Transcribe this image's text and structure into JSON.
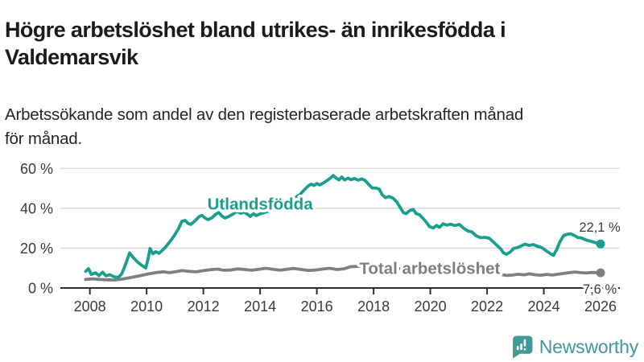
{
  "header": {
    "title": "Högre arbetslöshet bland utrikes- än inrikesfödda i\nValdemarsvik",
    "subtitle": "Arbetssökande som andel av den registerbaserade arbetskraften månad\nför månad."
  },
  "footer": {
    "brand": "Newsworthy",
    "logo_icon": "bar-chart-speech-bubble-icon"
  },
  "colors": {
    "teal_line": "#19A08D",
    "gray_line": "#7F7F7F",
    "logo_teal": "#3F9A95",
    "grid": "#D8D8D8",
    "axis": "#2E2E2E",
    "axis_text": "#3A3A3A",
    "title_text": "#1B1B1B"
  },
  "chart_data": {
    "type": "line",
    "title": "Högre arbetslöshet bland utrikes- än inrikesfödda i Valdemarsvik",
    "subtitle": "Arbetssökande som andel av den registerbaserade arbetskraften månad för månad.",
    "xlabel": "",
    "ylabel": "",
    "grid": "horizontal",
    "x_axis": {
      "range": [
        2006.96,
        2026.68
      ],
      "ticks": [
        2008,
        2010,
        2012,
        2014,
        2016,
        2018,
        2020,
        2022,
        2024,
        2026
      ]
    },
    "y_axis": {
      "range": [
        0,
        69.4
      ],
      "ticks": [
        0,
        20,
        40,
        60
      ],
      "tick_suffix": " %"
    },
    "series": [
      {
        "name": "Utlandsfödda",
        "color": "#19A08D",
        "end_value": 22.1,
        "end_label": "22,1 %",
        "end_label_dy": -15,
        "label_pos": {
          "year": 2014.0,
          "value": 39.3
        },
        "points": [
          [
            2007.85,
            8.3
          ],
          [
            2007.95,
            9.7
          ],
          [
            2008.05,
            6.8
          ],
          [
            2008.2,
            7.6
          ],
          [
            2008.32,
            6.2
          ],
          [
            2008.45,
            7.9
          ],
          [
            2008.57,
            6.1
          ],
          [
            2008.7,
            6.7
          ],
          [
            2008.85,
            5.6
          ],
          [
            2009.0,
            5.3
          ],
          [
            2009.12,
            7.0
          ],
          [
            2009.25,
            11.5
          ],
          [
            2009.4,
            17.6
          ],
          [
            2009.52,
            15.4
          ],
          [
            2009.67,
            13.2
          ],
          [
            2009.82,
            11.4
          ],
          [
            2009.97,
            10.0
          ],
          [
            2010.05,
            14.6
          ],
          [
            2010.12,
            19.8
          ],
          [
            2010.22,
            17.2
          ],
          [
            2010.32,
            18.2
          ],
          [
            2010.44,
            17.4
          ],
          [
            2010.56,
            19.0
          ],
          [
            2010.67,
            20.6
          ],
          [
            2010.82,
            23.2
          ],
          [
            2010.97,
            26.2
          ],
          [
            2011.12,
            29.6
          ],
          [
            2011.24,
            33.4
          ],
          [
            2011.36,
            33.9
          ],
          [
            2011.46,
            32.4
          ],
          [
            2011.56,
            31.9
          ],
          [
            2011.7,
            33.6
          ],
          [
            2011.85,
            35.8
          ],
          [
            2011.95,
            36.4
          ],
          [
            2012.06,
            35.1
          ],
          [
            2012.16,
            34.3
          ],
          [
            2012.3,
            35.2
          ],
          [
            2012.44,
            37.0
          ],
          [
            2012.54,
            37.9
          ],
          [
            2012.65,
            36.1
          ],
          [
            2012.76,
            35.1
          ],
          [
            2012.9,
            35.9
          ],
          [
            2013.05,
            37.1
          ],
          [
            2013.18,
            38.4
          ],
          [
            2013.32,
            37.5
          ],
          [
            2013.44,
            38.0
          ],
          [
            2013.55,
            37.0
          ],
          [
            2013.65,
            35.9
          ],
          [
            2013.77,
            37.3
          ],
          [
            2013.86,
            36.3
          ],
          [
            2014.0,
            37.2
          ],
          [
            2014.3,
            38.5
          ],
          [
            2014.6,
            40.1
          ],
          [
            2014.9,
            42.2
          ],
          [
            2015.15,
            44.5
          ],
          [
            2015.4,
            46.8
          ],
          [
            2015.58,
            49.6
          ],
          [
            2015.7,
            51.2
          ],
          [
            2015.8,
            52.1
          ],
          [
            2015.9,
            51.4
          ],
          [
            2016.0,
            52.4
          ],
          [
            2016.1,
            51.7
          ],
          [
            2016.22,
            52.6
          ],
          [
            2016.35,
            53.8
          ],
          [
            2016.48,
            55.2
          ],
          [
            2016.58,
            56.4
          ],
          [
            2016.68,
            55.1
          ],
          [
            2016.78,
            54.2
          ],
          [
            2016.88,
            55.7
          ],
          [
            2016.98,
            54.2
          ],
          [
            2017.1,
            55.1
          ],
          [
            2017.2,
            54.3
          ],
          [
            2017.32,
            54.9
          ],
          [
            2017.45,
            54.1
          ],
          [
            2017.58,
            54.7
          ],
          [
            2017.7,
            54.0
          ],
          [
            2017.82,
            52.1
          ],
          [
            2017.95,
            50.2
          ],
          [
            2018.08,
            50.1
          ],
          [
            2018.2,
            49.6
          ],
          [
            2018.3,
            46.8
          ],
          [
            2018.42,
            45.3
          ],
          [
            2018.55,
            45.9
          ],
          [
            2018.68,
            45.1
          ],
          [
            2018.82,
            43.1
          ],
          [
            2018.95,
            40.1
          ],
          [
            2019.05,
            37.8
          ],
          [
            2019.15,
            37.3
          ],
          [
            2019.28,
            38.9
          ],
          [
            2019.4,
            39.4
          ],
          [
            2019.5,
            37.3
          ],
          [
            2019.62,
            36.7
          ],
          [
            2019.75,
            34.8
          ],
          [
            2019.87,
            32.8
          ],
          [
            2019.97,
            30.8
          ],
          [
            2020.1,
            30.1
          ],
          [
            2020.22,
            31.4
          ],
          [
            2020.32,
            30.4
          ],
          [
            2020.45,
            32.2
          ],
          [
            2020.58,
            31.5
          ],
          [
            2020.72,
            32.0
          ],
          [
            2020.87,
            31.3
          ],
          [
            2021.02,
            31.9
          ],
          [
            2021.17,
            30.0
          ],
          [
            2021.32,
            28.6
          ],
          [
            2021.47,
            28.1
          ],
          [
            2021.62,
            26.1
          ],
          [
            2021.77,
            25.2
          ],
          [
            2021.92,
            25.4
          ],
          [
            2022.07,
            25.0
          ],
          [
            2022.22,
            23.1
          ],
          [
            2022.37,
            21.1
          ],
          [
            2022.48,
            19.6
          ],
          [
            2022.58,
            17.6
          ],
          [
            2022.68,
            16.9
          ],
          [
            2022.82,
            18.1
          ],
          [
            2022.94,
            19.9
          ],
          [
            2023.08,
            20.3
          ],
          [
            2023.2,
            21.1
          ],
          [
            2023.34,
            22.0
          ],
          [
            2023.48,
            21.3
          ],
          [
            2023.62,
            21.8
          ],
          [
            2023.78,
            20.9
          ],
          [
            2023.92,
            20.3
          ],
          [
            2024.08,
            18.7
          ],
          [
            2024.22,
            17.3
          ],
          [
            2024.34,
            16.4
          ],
          [
            2024.46,
            19.5
          ],
          [
            2024.56,
            23.0
          ],
          [
            2024.7,
            26.3
          ],
          [
            2024.82,
            26.9
          ],
          [
            2024.95,
            27.2
          ],
          [
            2025.08,
            26.3
          ],
          [
            2025.2,
            25.3
          ],
          [
            2025.32,
            25.1
          ],
          [
            2025.45,
            24.3
          ],
          [
            2025.58,
            23.7
          ],
          [
            2025.72,
            23.2
          ],
          [
            2025.85,
            22.6
          ],
          [
            2026.0,
            22.1
          ]
        ]
      },
      {
        "name": "Total arbetslöshet",
        "color": "#7F7F7F",
        "end_value": 7.6,
        "end_label": "7,6 %",
        "end_label_dy": 26,
        "label_pos": {
          "year": 2019.98,
          "value": 7.0
        },
        "points": [
          [
            2007.85,
            4.3
          ],
          [
            2008.1,
            4.6
          ],
          [
            2008.35,
            4.3
          ],
          [
            2008.6,
            4.1
          ],
          [
            2008.85,
            4.0
          ],
          [
            2009.1,
            4.4
          ],
          [
            2009.35,
            5.0
          ],
          [
            2009.6,
            5.7
          ],
          [
            2009.85,
            6.4
          ],
          [
            2010.1,
            7.2
          ],
          [
            2010.35,
            7.8
          ],
          [
            2010.6,
            8.1
          ],
          [
            2010.8,
            7.7
          ],
          [
            2011.0,
            8.1
          ],
          [
            2011.25,
            8.7
          ],
          [
            2011.5,
            8.3
          ],
          [
            2011.75,
            8.1
          ],
          [
            2012.0,
            8.7
          ],
          [
            2012.25,
            9.2
          ],
          [
            2012.5,
            9.5
          ],
          [
            2012.7,
            8.9
          ],
          [
            2012.95,
            9.0
          ],
          [
            2013.2,
            9.6
          ],
          [
            2013.45,
            9.3
          ],
          [
            2013.7,
            8.9
          ],
          [
            2013.95,
            9.4
          ],
          [
            2014.2,
            9.9
          ],
          [
            2014.45,
            9.4
          ],
          [
            2014.7,
            8.9
          ],
          [
            2014.95,
            9.4
          ],
          [
            2015.2,
            9.8
          ],
          [
            2015.45,
            9.3
          ],
          [
            2015.7,
            8.8
          ],
          [
            2015.95,
            9.0
          ],
          [
            2016.2,
            9.5
          ],
          [
            2016.45,
            9.9
          ],
          [
            2016.7,
            9.3
          ],
          [
            2016.95,
            9.6
          ],
          [
            2017.2,
            10.7
          ],
          [
            2017.5,
            10.9
          ],
          [
            2018.0,
            10.3
          ],
          [
            2018.5,
            10.0
          ],
          [
            2019.0,
            9.6
          ],
          [
            2019.5,
            9.2
          ],
          [
            2020.0,
            9.8
          ],
          [
            2020.4,
            11.2
          ],
          [
            2020.8,
            10.8
          ],
          [
            2021.2,
            10.2
          ],
          [
            2021.6,
            9.2
          ],
          [
            2022.0,
            8.2
          ],
          [
            2022.4,
            7.0
          ],
          [
            2022.7,
            6.3
          ],
          [
            2022.9,
            6.5
          ],
          [
            2023.1,
            6.9
          ],
          [
            2023.3,
            6.6
          ],
          [
            2023.5,
            7.1
          ],
          [
            2023.7,
            6.6
          ],
          [
            2023.9,
            6.4
          ],
          [
            2024.1,
            6.8
          ],
          [
            2024.3,
            6.5
          ],
          [
            2024.5,
            6.9
          ],
          [
            2024.7,
            7.3
          ],
          [
            2024.9,
            7.7
          ],
          [
            2025.1,
            8.0
          ],
          [
            2025.3,
            7.7
          ],
          [
            2025.5,
            7.5
          ],
          [
            2025.7,
            7.8
          ],
          [
            2025.9,
            7.7
          ],
          [
            2026.0,
            7.6
          ]
        ]
      }
    ]
  }
}
